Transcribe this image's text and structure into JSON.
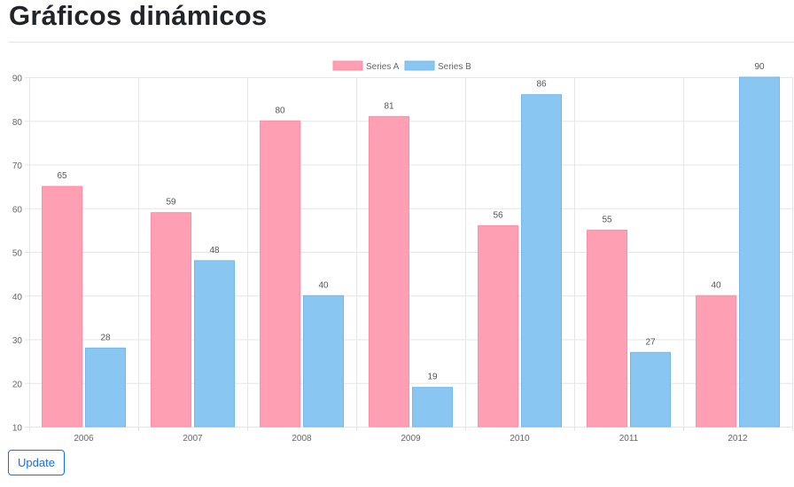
{
  "page": {
    "title": "Gráficos dinámicos"
  },
  "controls": {
    "update_label": "Update"
  },
  "chart_data": {
    "type": "bar",
    "categories": [
      "2006",
      "2007",
      "2008",
      "2009",
      "2010",
      "2011",
      "2012"
    ],
    "series": [
      {
        "name": "Series A",
        "values": [
          65,
          59,
          80,
          81,
          56,
          55,
          40
        ],
        "color": "#ff9fb3",
        "border_color": "#ff8ea6"
      },
      {
        "name": "Series B",
        "values": [
          28,
          48,
          40,
          19,
          86,
          27,
          90
        ],
        "color": "#89c7f2",
        "border_color": "#72b8ec"
      }
    ],
    "ylim": [
      10,
      90
    ],
    "yticks": [
      10,
      20,
      30,
      40,
      50,
      60,
      70,
      80,
      90
    ],
    "grid": true,
    "legend_position": "top",
    "data_labels": true,
    "colors": {
      "grid": "#e6e6e6",
      "axis_text": "#666666",
      "label_text": "#555555"
    }
  }
}
